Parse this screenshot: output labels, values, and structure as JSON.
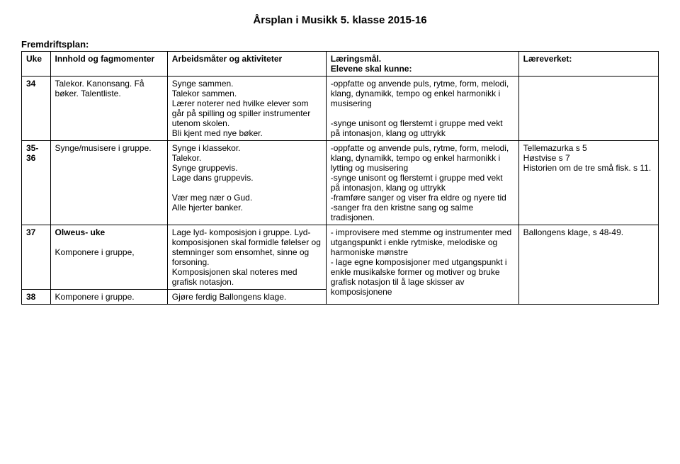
{
  "title": "Årsplan i Musikk 5. klasse 2015-16",
  "fremdrift_label": "Fremdriftsplan:",
  "headers": {
    "uke": "Uke",
    "innhold": "Innhold og fagmomenter",
    "arbeidsmater": "Arbeidsmåter og aktiviteter",
    "laeringsmal_line1": "Læringsmål.",
    "laeringsmal_line2": "Elevene skal kunne:",
    "laereverket": "Læreverket:"
  },
  "rows": [
    {
      "uke": "34",
      "innhold": "Talekor. Kanonsang. Få bøker. Talentliste.",
      "arbeidsmater": "Synge sammen.\nTalekor sammen.\nLærer noterer ned hvilke elever som går på spilling og spiller instrumenter utenom skolen.\nBli kjent med nye bøker.",
      "laeringsmal": "-oppfatte og anvende puls, rytme, form, melodi, klang, dynamikk, tempo og enkel harmonikk i musisering\n\n-synge unisont og flerstemt i gruppe med vekt på intonasjon, klang og uttrykk",
      "laereverket": ""
    },
    {
      "uke": "35-36",
      "innhold": "Synge/musisere i gruppe.",
      "arbeidsmater": "Synge i klassekor.\nTalekor.\nSynge gruppevis.\nLage dans gruppevis.\n\nVær meg nær o Gud.\nAlle hjerter banker.",
      "laeringsmal": "-oppfatte og anvende puls, rytme, form, melodi, klang, dynamikk, tempo og enkel harmonikk i lytting og musisering\n-synge unisont og flerstemt i gruppe med vekt på intonasjon, klang og uttrykk\n-framføre sanger og viser fra eldre og nyere tid\n-sanger fra den kristne sang og salme tradisjonen.",
      "laereverket": "Tellemazurka s 5\nHøstvise s 7\nHistorien om de tre små fisk. s 11."
    },
    {
      "uke": "37",
      "innhold": "Olweus- uke\n\nKomponere i gruppe,",
      "arbeidsmater": "Lage lyd- komposisjon i gruppe. Lyd- komposisjonen skal formidle følelser og stemninger som ensomhet, sinne og forsoning.\nKomposisjonen skal noteres med grafisk notasjon.",
      "laeringsmal": "- improvisere med stemme og instrumenter med utgangspunkt i enkle rytmiske, melodiske og harmoniske mønstre\n- lage egne komposisjoner med utgangspunkt i enkle musikalske former og motiver og bruke grafisk notasjon til å lage skisser av komposisjonene",
      "laereverket": "Ballongens klage, s 48-49."
    },
    {
      "uke": "38",
      "innhold": "Komponere i gruppe.",
      "arbeidsmater": "Gjøre ferdig Ballongens klage."
    }
  ],
  "innhold_bold_prefix": "Olweus- uke"
}
